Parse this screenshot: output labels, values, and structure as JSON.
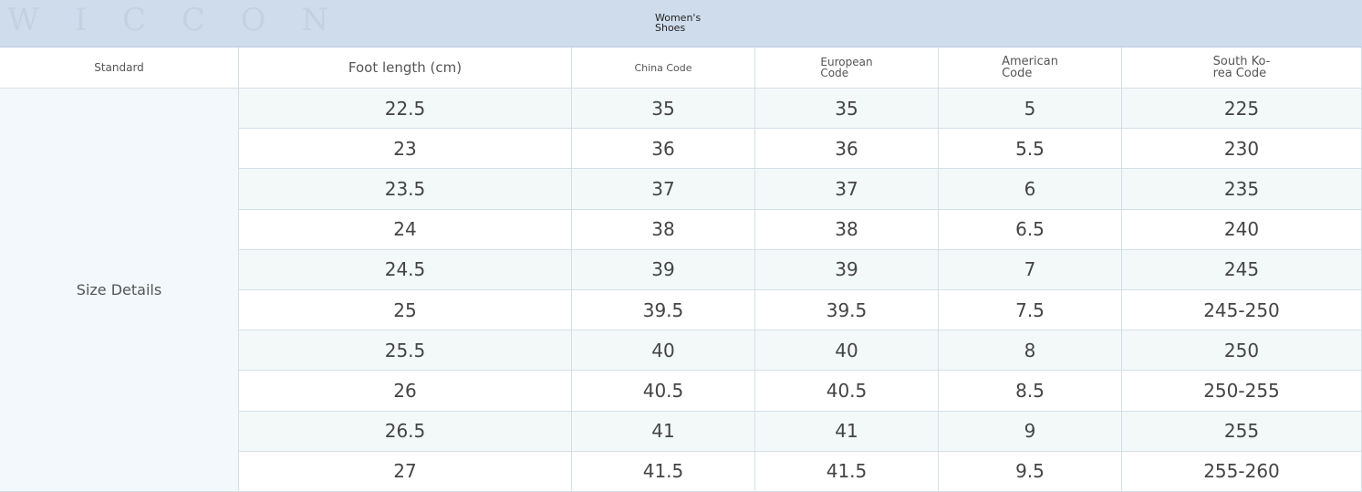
{
  "header": {
    "title": [
      "Women's",
      "Shoes"
    ]
  },
  "watermarks": [
    "W I C C O N",
    "wiccon",
    "W I C C O N"
  ],
  "table": {
    "columns": [
      [
        "Standard"
      ],
      [
        "Foot length (cm)"
      ],
      [
        "China Code"
      ],
      [
        "European",
        "Code"
      ],
      [
        "American",
        "Code"
      ],
      [
        "South Ko-",
        "rea Code"
      ]
    ],
    "row_label": "Size Details",
    "rows": [
      [
        "22.5",
        "35",
        "35",
        "5",
        "225"
      ],
      [
        "23",
        "36",
        "36",
        "5.5",
        "230"
      ],
      [
        "23.5",
        "37",
        "37",
        "6",
        "235"
      ],
      [
        "24",
        "38",
        "38",
        "6.5",
        "240"
      ],
      [
        "24.5",
        "39",
        "39",
        "7",
        "245"
      ],
      [
        "25",
        "39.5",
        "39.5",
        "7.5",
        "245-250"
      ],
      [
        "25.5",
        "40",
        "40",
        "8",
        "250"
      ],
      [
        "26",
        "40.5",
        "40.5",
        "8.5",
        "250-255"
      ],
      [
        "26.5",
        "41",
        "41",
        "9",
        "255"
      ],
      [
        "27",
        "41.5",
        "41.5",
        "9.5",
        "255-260"
      ]
    ]
  }
}
